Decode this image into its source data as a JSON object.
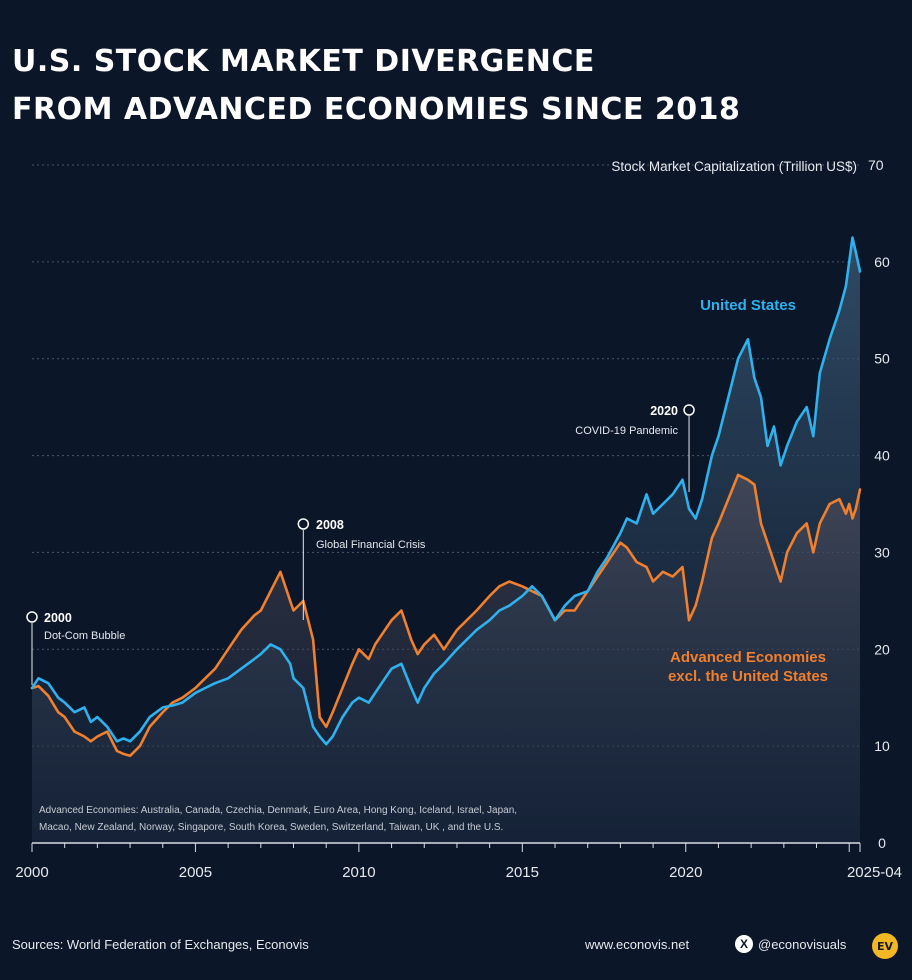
{
  "header": {
    "title_line1": "U.S. STOCK MARKET DIVERGENCE",
    "title_line2": "FROM ADVANCED ECONOMIES SINCE 2018"
  },
  "chart_data": {
    "type": "line",
    "ylabel": "Stock Market Capitalization (Trillion US$)",
    "ylim": [
      0,
      70
    ],
    "yticks": [
      "0",
      "10",
      "20",
      "30",
      "40",
      "50",
      "60",
      "70"
    ],
    "xlim": [
      2000,
      2025.33
    ],
    "xticks": [
      {
        "x": 2000,
        "label": "2000"
      },
      {
        "x": 2005,
        "label": "2005"
      },
      {
        "x": 2010,
        "label": "2010"
      },
      {
        "x": 2015,
        "label": "2015"
      },
      {
        "x": 2020,
        "label": "2020"
      },
      {
        "x": 2025.33,
        "label": "2025-04"
      }
    ],
    "grid": true,
    "series": [
      {
        "name": "United States",
        "color": "#2fb1ee",
        "x": [
          2000,
          2000.2,
          2000.5,
          2000.8,
          2001,
          2001.3,
          2001.6,
          2001.8,
          2002,
          2002.3,
          2002.6,
          2002.8,
          2003,
          2003.3,
          2003.6,
          2004,
          2004.3,
          2004.6,
          2005,
          2005.3,
          2005.6,
          2006,
          2006.4,
          2006.8,
          2007,
          2007.3,
          2007.6,
          2007.9,
          2008,
          2008.3,
          2008.6,
          2008.8,
          2009,
          2009.2,
          2009.5,
          2009.8,
          2010,
          2010.3,
          2010.5,
          2010.8,
          2011,
          2011.3,
          2011.6,
          2011.8,
          2012,
          2012.3,
          2012.6,
          2013,
          2013.3,
          2013.6,
          2014,
          2014.3,
          2014.6,
          2015,
          2015.3,
          2015.6,
          2016,
          2016.3,
          2016.6,
          2017,
          2017.3,
          2017.6,
          2018,
          2018.2,
          2018.5,
          2018.8,
          2019,
          2019.3,
          2019.6,
          2019.9,
          2020.1,
          2020.3,
          2020.5,
          2020.8,
          2021,
          2021.3,
          2021.6,
          2021.9,
          2022.1,
          2022.3,
          2022.5,
          2022.7,
          2022.9,
          2023.1,
          2023.4,
          2023.7,
          2023.9,
          2024.1,
          2024.4,
          2024.7,
          2024.9,
          2025.0,
          2025.1,
          2025.2,
          2025.33
        ],
        "values": [
          16,
          17,
          16.5,
          15,
          14.5,
          13.5,
          14,
          12.5,
          13,
          12,
          10.5,
          10.8,
          10.5,
          11.5,
          13,
          14,
          14.2,
          14.5,
          15.5,
          16,
          16.5,
          17,
          18,
          19,
          19.5,
          20.5,
          20,
          18.5,
          17,
          16,
          12,
          11,
          10.2,
          11,
          13,
          14.5,
          15,
          14.5,
          15.5,
          17,
          18,
          18.5,
          16,
          14.5,
          16,
          17.5,
          18.5,
          20,
          21,
          22,
          23,
          24,
          24.5,
          25.5,
          26.5,
          25.5,
          23,
          24.5,
          25.5,
          26,
          28,
          29.5,
          32,
          33.5,
          33,
          36,
          34,
          35,
          36,
          37.5,
          34.5,
          33.5,
          35.5,
          40,
          42,
          46,
          50,
          52,
          48,
          46,
          41,
          43,
          39,
          41,
          43.5,
          45,
          42,
          48.5,
          52,
          55,
          57.5,
          60,
          62.5,
          61,
          59
        ]
      },
      {
        "name": "Advanced Economies excl. the United States",
        "color": "#f07f2e",
        "x": [
          2000,
          2000.2,
          2000.5,
          2000.8,
          2001,
          2001.3,
          2001.6,
          2001.8,
          2002,
          2002.3,
          2002.6,
          2002.8,
          2003,
          2003.3,
          2003.6,
          2004,
          2004.3,
          2004.6,
          2005,
          2005.3,
          2005.6,
          2006,
          2006.4,
          2006.8,
          2007,
          2007.3,
          2007.6,
          2007.9,
          2008,
          2008.3,
          2008.6,
          2008.8,
          2009,
          2009.2,
          2009.5,
          2009.8,
          2010,
          2010.3,
          2010.5,
          2010.8,
          2011,
          2011.3,
          2011.6,
          2011.8,
          2012,
          2012.3,
          2012.6,
          2013,
          2013.3,
          2013.6,
          2014,
          2014.3,
          2014.6,
          2015,
          2015.3,
          2015.6,
          2016,
          2016.3,
          2016.6,
          2017,
          2017.3,
          2017.6,
          2018,
          2018.2,
          2018.5,
          2018.8,
          2019,
          2019.3,
          2019.6,
          2019.9,
          2020.1,
          2020.3,
          2020.5,
          2020.8,
          2021,
          2021.3,
          2021.6,
          2021.9,
          2022.1,
          2022.3,
          2022.5,
          2022.7,
          2022.9,
          2023.1,
          2023.4,
          2023.7,
          2023.9,
          2024.1,
          2024.4,
          2024.7,
          2024.9,
          2025.0,
          2025.1,
          2025.2,
          2025.33
        ],
        "values": [
          16,
          16.2,
          15.2,
          13.5,
          13,
          11.5,
          11,
          10.5,
          11,
          11.5,
          9.5,
          9.2,
          9,
          10,
          12,
          13.5,
          14.5,
          15,
          16,
          17,
          18,
          20,
          22,
          23.5,
          24,
          26,
          28,
          25,
          24,
          25,
          21,
          13,
          12,
          13.5,
          16,
          18.5,
          20,
          19,
          20.5,
          22,
          23,
          24,
          21,
          19.5,
          20.5,
          21.5,
          20,
          22,
          23,
          24,
          25.5,
          26.5,
          27,
          26.5,
          26,
          25.5,
          23,
          24,
          24,
          26,
          27.5,
          29,
          31,
          30.5,
          29,
          28.5,
          27,
          28,
          27.5,
          28.5,
          23,
          24.5,
          27,
          31.5,
          33,
          35.5,
          38,
          37.5,
          37,
          33,
          31,
          29,
          27,
          30,
          32,
          33,
          30,
          33,
          35,
          35.5,
          34,
          35,
          33.5,
          34.5,
          36.5
        ]
      }
    ],
    "annotations": [
      {
        "year": "2000",
        "text": "Dot-Com Bubble",
        "x": 2000
      },
      {
        "year": "2008",
        "text": "Global Financial Crisis",
        "x": 2008.3
      },
      {
        "year": "2020",
        "text": "COVID-19 Pandemic",
        "x": 2020.1
      }
    ],
    "series_labels": {
      "us": "United States",
      "adv_line1": "Advanced Economies",
      "adv_line2": "excl. the United States"
    },
    "note_line1": "Advanced Economies: Australia, Canada, Czechia, Denmark, Euro Area, Hong Kong, Iceland, Israel, Japan,",
    "note_line2": "Macao, New Zealand, Norway, Singapore, South Korea, Sweden, Switzerland, Taiwan, UK , and the U.S."
  },
  "footer": {
    "sources": "Sources: World Federation of Exchanges, Econovis",
    "website": "www.econovis.net",
    "x_icon_glyph": "X",
    "handle": "@econovisuals",
    "logo_text": "EV",
    "logo_color": "#f2b824"
  }
}
